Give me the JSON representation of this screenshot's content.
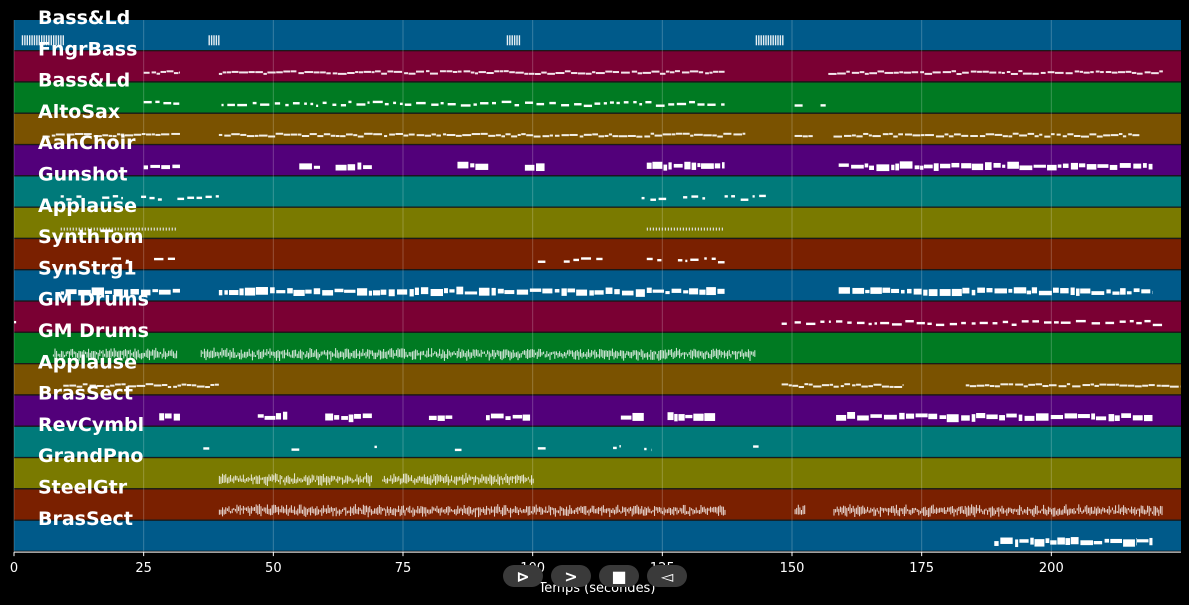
{
  "chart_data": {
    "type": "piano-roll",
    "xlabel": "Temps (secondes)",
    "xlim": [
      0,
      225
    ],
    "x_ticks": [
      0,
      25,
      50,
      75,
      100,
      125,
      150,
      175,
      200
    ],
    "grid": true,
    "tracks": [
      {
        "name": "Bass&Ld",
        "color": "#005a8a",
        "segments": [
          [
            1.5,
            9.5
          ],
          [
            37.5,
            39.5
          ],
          [
            95,
            97.5
          ],
          [
            143,
            148.5
          ]
        ],
        "style": "sparse-tall"
      },
      {
        "name": "FngrBass",
        "color": "#7a0033",
        "segments": [
          [
            25,
            32
          ],
          [
            39.5,
            137
          ],
          [
            157,
            221.5
          ]
        ],
        "style": "line"
      },
      {
        "name": "Bass&Ld",
        "color": "#007a22",
        "segments": [
          [
            25,
            32
          ],
          [
            40,
            137
          ],
          [
            150.5,
            152.5
          ],
          [
            155.5,
            156.5
          ]
        ],
        "style": "dashes"
      },
      {
        "name": "AltoSax",
        "color": "#7a5200",
        "segments": [
          [
            5.5,
            32
          ],
          [
            39.5,
            141
          ],
          [
            150.5,
            154
          ],
          [
            158,
            217
          ]
        ],
        "style": "line"
      },
      {
        "name": "AahChoir",
        "color": "#52007a",
        "segments": [
          [
            25,
            32
          ],
          [
            55,
            59
          ],
          [
            62,
            69
          ],
          [
            85.5,
            91.5
          ],
          [
            98.5,
            102.5
          ],
          [
            122,
            137
          ],
          [
            159,
            219.5
          ]
        ],
        "style": "chords"
      },
      {
        "name": "Gunshot",
        "color": "#007a7a",
        "segments": [
          [
            9,
            13
          ],
          [
            17,
            21
          ],
          [
            24.5,
            28.5
          ],
          [
            31.5,
            39.5
          ],
          [
            121,
            126
          ],
          [
            129,
            133.5
          ],
          [
            137,
            145
          ]
        ],
        "style": "dashes"
      },
      {
        "name": "Applause",
        "color": "#7a7a00",
        "segments": [
          [
            9,
            31.5
          ],
          [
            122,
            137
          ]
        ],
        "style": "dotted"
      },
      {
        "name": "SynthTom",
        "color": "#7a2000",
        "segments": [
          [
            19,
            23
          ],
          [
            27,
            31.5
          ],
          [
            101,
            103
          ],
          [
            106,
            114
          ],
          [
            122,
            125
          ],
          [
            128,
            137
          ]
        ],
        "style": "dashes"
      },
      {
        "name": "SynStrg1",
        "color": "#005a8a",
        "segments": [
          [
            9,
            32
          ],
          [
            39.5,
            137
          ],
          [
            159,
            219.5
          ]
        ],
        "style": "chords"
      },
      {
        "name": "GM Drums",
        "color": "#7a0033",
        "segments": [
          [
            0,
            0.8
          ],
          [
            148,
            149
          ],
          [
            150.5,
            221.5
          ]
        ],
        "style": "dashes"
      },
      {
        "name": "GM Drums",
        "color": "#007a22",
        "segments": [
          [
            7.5,
            31.5
          ],
          [
            36,
            143
          ]
        ],
        "style": "dense"
      },
      {
        "name": "Applause",
        "color": "#7a5200",
        "segments": [
          [
            9.5,
            39.5
          ],
          [
            148,
            171.5
          ],
          [
            183.5,
            225
          ]
        ],
        "style": "line"
      },
      {
        "name": "BrasSect",
        "color": "#52007a",
        "segments": [
          [
            28,
            32
          ],
          [
            47,
            53
          ],
          [
            60,
            69
          ],
          [
            80,
            84.5
          ],
          [
            91,
            99.5
          ],
          [
            117,
            121.5
          ],
          [
            126,
            135.5
          ],
          [
            158.5,
            219.5
          ]
        ],
        "style": "chords"
      },
      {
        "name": "RevCymbl",
        "color": "#007a7a",
        "segments": [
          [
            36.5,
            38
          ],
          [
            53.5,
            55
          ],
          [
            69.5,
            71
          ],
          [
            85,
            86.5
          ],
          [
            101,
            102.5
          ],
          [
            115.5,
            117
          ],
          [
            121.5,
            123
          ],
          [
            142.5,
            144
          ]
        ],
        "style": "dashes"
      },
      {
        "name": "GrandPno",
        "color": "#7a7a00",
        "segments": [
          [
            39.5,
            69
          ],
          [
            71,
            100
          ]
        ],
        "style": "dense"
      },
      {
        "name": "SteelGtr",
        "color": "#7a2000",
        "segments": [
          [
            39.5,
            137
          ],
          [
            150.5,
            152.5
          ],
          [
            158,
            221.5
          ]
        ],
        "style": "dense"
      },
      {
        "name": "BrasSect",
        "color": "#005a8a",
        "segments": [
          [
            189,
            216.5
          ],
          [
            216.5,
            219.5
          ]
        ],
        "style": "chords"
      }
    ]
  },
  "controls": [
    {
      "name": "rewind-button",
      "icon": "rewind-icon",
      "glyph": "⊳"
    },
    {
      "name": "play-button",
      "icon": "play-icon",
      "glyph": ">"
    },
    {
      "name": "stop-button",
      "icon": "stop-icon",
      "glyph": "■"
    },
    {
      "name": "back-button",
      "icon": "back-icon",
      "glyph": "◅"
    }
  ]
}
